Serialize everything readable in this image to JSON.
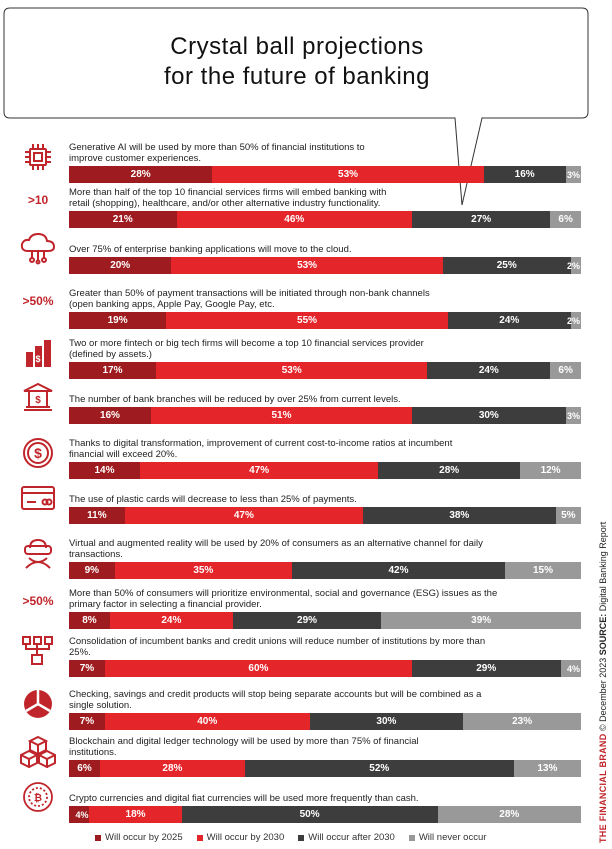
{
  "title": [
    "Crystal ball projections",
    "for the future of banking"
  ],
  "colors": {
    "by_2025": "#9e1c1f",
    "by_2030": "#e4252a",
    "after_2030": "#3d3d3d",
    "never": "#999999",
    "icon": "#c0252b"
  },
  "legend": [
    {
      "label": "Will occur by 2025",
      "color": "#9e1c1f"
    },
    {
      "label": "Will occur by 2030",
      "color": "#e4252a"
    },
    {
      "label": "Will occur after 2030",
      "color": "#3d3d3d"
    },
    {
      "label": "Will never occur",
      "color": "#999999"
    }
  ],
  "side_note": {
    "brand": "THE FINANCIAL BRAND",
    "date": "© December 2023",
    "source_label": "SOURCE:",
    "source": "Digital Banking Report"
  },
  "chart_data": {
    "type": "bar",
    "orientation": "horizontal-stacked-100",
    "series_names": [
      "Will occur by 2025",
      "Will occur by 2030",
      "Will occur after 2030",
      "Will never occur"
    ],
    "rows": [
      {
        "icon": "chip-icon",
        "icon_label": "",
        "lines": [
          "Generative AI will be used by more than 50% of financial institutions to",
          "improve customer experiences."
        ],
        "values": [
          28,
          53,
          16,
          3
        ]
      },
      {
        "icon": "",
        "icon_label": ">10",
        "lines": [
          "More than half of the top 10 financial services firms will embed banking with",
          "retail (shopping), healthcare, and/or other alternative industry functionality."
        ],
        "values": [
          21,
          46,
          27,
          6
        ]
      },
      {
        "icon": "cloud-icon",
        "icon_label": "",
        "lines": [
          "Over 75% of enterprise banking applications will move to the cloud."
        ],
        "values": [
          20,
          53,
          25,
          2
        ]
      },
      {
        "icon": "",
        "icon_label": ">50%",
        "lines": [
          "Greater than 50% of payment transactions will be initiated through non-bank channels",
          "(open banking apps, Apple Pay, Google Pay, etc."
        ],
        "values": [
          19,
          55,
          24,
          2
        ]
      },
      {
        "icon": "growth-icon",
        "icon_label": "",
        "lines": [
          "Two or more fintech or big tech firms will become a top 10 financial services provider",
          "(defined by assets.)"
        ],
        "values": [
          17,
          53,
          24,
          6
        ]
      },
      {
        "icon": "bank-branch-icon",
        "icon_label": "",
        "lines": [
          "The number of bank branches will be reduced by over 25% from current levels."
        ],
        "values": [
          16,
          51,
          30,
          3
        ]
      },
      {
        "icon": "dollar-coin-icon",
        "icon_label": "",
        "lines": [
          "Thanks to digital transformation, improvement of current cost-to-income ratios at incumbent",
          "financial will exceed 20%."
        ],
        "values": [
          14,
          47,
          28,
          12
        ]
      },
      {
        "icon": "credit-card-icon",
        "icon_label": "",
        "lines": [
          "The use of plastic cards will decrease to less than 25% of payments."
        ],
        "values": [
          11,
          47,
          38,
          5
        ]
      },
      {
        "icon": "vr-headset-icon",
        "icon_label": "",
        "lines": [
          "Virtual and augmented reality will be used by 20% of consumers as an alternative channel for daily",
          "transactions."
        ],
        "values": [
          9,
          35,
          42,
          15
        ]
      },
      {
        "icon": "",
        "icon_label": ">50%",
        "lines": [
          "More than 50% of consumers will prioritize environmental, social and governance (ESG) issues as the",
          "primary factor in selecting a financial provider."
        ],
        "values": [
          8,
          24,
          29,
          39
        ]
      },
      {
        "icon": "consolidation-icon",
        "icon_label": "",
        "lines": [
          "Consolidation of incumbent banks and credit unions will reduce number of institutions by more than",
          "25%."
        ],
        "values": [
          7,
          60,
          29,
          4
        ]
      },
      {
        "icon": "pie-icon",
        "icon_label": "",
        "lines": [
          "Checking, savings and credit products will stop being separate accounts but will be combined as a",
          "single solution."
        ],
        "values": [
          7,
          40,
          30,
          23
        ]
      },
      {
        "icon": "blocks-icon",
        "icon_label": "",
        "lines": [
          "Blockchain and digital ledger technology will be used by more than 75% of financial",
          "institutions."
        ],
        "values": [
          6,
          28,
          52,
          13
        ]
      },
      {
        "icon": "crypto-coin-icon",
        "icon_label": "",
        "lines": [
          "Crypto currencies and digital fiat currencies will be used more frequently than cash."
        ],
        "values": [
          4,
          18,
          50,
          28
        ]
      }
    ]
  }
}
